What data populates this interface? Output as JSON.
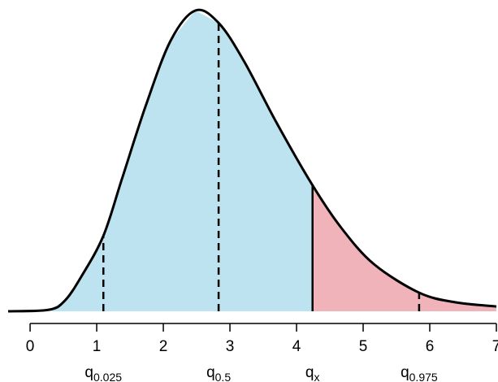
{
  "chart_data": {
    "type": "density",
    "x": [
      -0.33,
      0.28,
      0.52,
      0.77,
      1.1,
      1.38,
      1.74,
      2.11,
      2.48,
      2.83,
      3.21,
      3.7,
      4.24,
      4.67,
      5.16,
      5.84,
      6.38,
      7.0
    ],
    "values": [
      0,
      0.005,
      0.035,
      0.116,
      0.251,
      0.441,
      0.686,
      0.9,
      1.0,
      0.959,
      0.832,
      0.627,
      0.419,
      0.278,
      0.157,
      0.062,
      0.03,
      0.016
    ],
    "xlim": [
      -0.33,
      7
    ],
    "ylim": [
      0,
      1
    ],
    "xticks": [
      0,
      1,
      2,
      3,
      4,
      5,
      6,
      7
    ],
    "line_color": "#000000",
    "below_color": "#bee3f0",
    "above_color": "#f0b3ba",
    "quantiles": [
      {
        "x": 1.1,
        "label": "q",
        "subscript": "0.025",
        "line": "dashed"
      },
      {
        "x": 2.83,
        "label": "q",
        "subscript": "0.5",
        "line": "dashed"
      },
      {
        "x": 4.24,
        "label": "q",
        "subscript": "x",
        "line": "solid"
      },
      {
        "x": 5.84,
        "label": "q",
        "subscript": "0.975",
        "line": "dashed"
      }
    ]
  }
}
